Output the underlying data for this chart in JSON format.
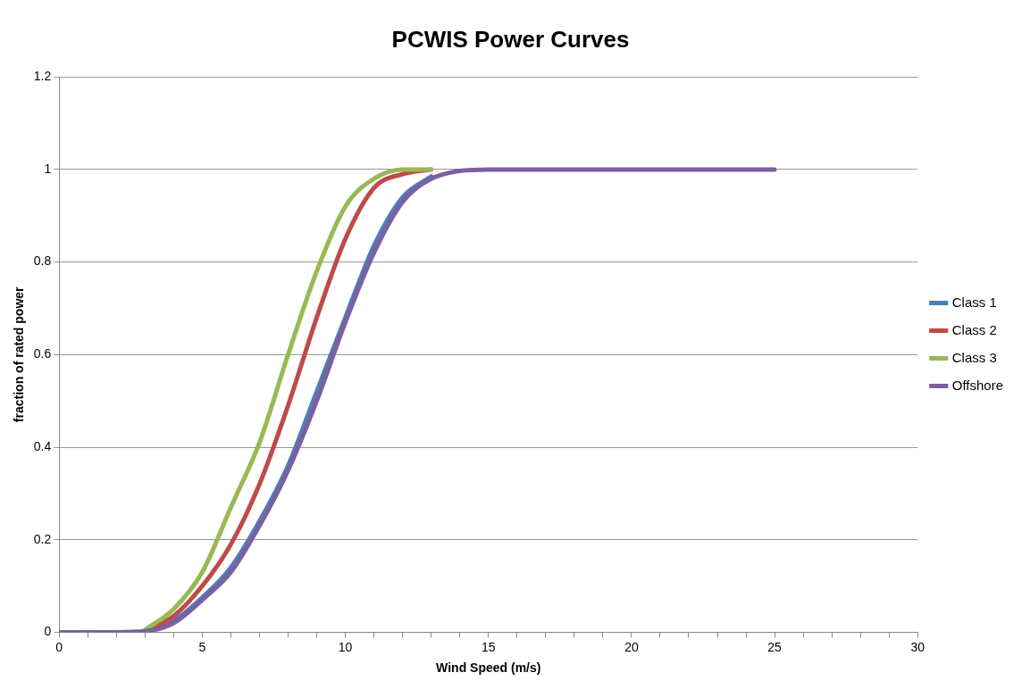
{
  "chart_data": {
    "type": "line",
    "title": "PCWIS Power Curves",
    "xlabel": "Wind Speed (m/s)",
    "ylabel": "fraction of rated power",
    "x": [
      0,
      1,
      2,
      3,
      4,
      5,
      6,
      7,
      8,
      9,
      10,
      11,
      12,
      13,
      14,
      15,
      16,
      17,
      18,
      19,
      20,
      21,
      22,
      23,
      24,
      25
    ],
    "series": [
      {
        "name": "Class 1",
        "color": "#4a7ebb",
        "values": [
          null,
          null,
          null,
          0.004,
          0.025,
          0.075,
          0.14,
          0.24,
          0.36,
          0.52,
          0.68,
          0.835,
          0.94,
          0.985,
          null,
          null,
          null,
          null,
          null,
          null,
          null,
          null,
          null,
          null,
          null,
          null
        ]
      },
      {
        "name": "Class 2",
        "color": "#be4b48",
        "values": [
          null,
          null,
          null,
          0.003,
          0.035,
          0.1,
          0.19,
          0.32,
          0.49,
          0.68,
          0.85,
          0.96,
          0.99,
          1,
          null,
          null,
          null,
          null,
          null,
          null,
          null,
          null,
          null,
          null,
          null,
          null
        ]
      },
      {
        "name": "Class 3",
        "color": "#98b954",
        "values": [
          null,
          null,
          null,
          0.005,
          0.05,
          0.13,
          0.27,
          0.41,
          0.6,
          0.78,
          0.92,
          0.98,
          1,
          1,
          null,
          null,
          null,
          null,
          null,
          null,
          null,
          null,
          null,
          null,
          null,
          null
        ]
      },
      {
        "name": "Offshore",
        "color": "#7d5fa0",
        "values": [
          0,
          0,
          0,
          0.002,
          0.02,
          0.07,
          0.13,
          0.23,
          0.35,
          0.5,
          0.67,
          0.82,
          0.93,
          0.98,
          0.997,
          1,
          1,
          1,
          1,
          1,
          1,
          1,
          1,
          1,
          1,
          1
        ]
      }
    ],
    "xlim": [
      0,
      30
    ],
    "xticks": [
      0,
      {
        "value": 1,
        "label": null
      },
      {
        "value": 2,
        "label": null
      },
      {
        "value": 3,
        "label": null
      },
      {
        "value": 4,
        "label": null
      },
      5,
      {
        "value": 6,
        "label": null
      },
      {
        "value": 7,
        "label": null
      },
      {
        "value": 8,
        "label": null
      },
      {
        "value": 9,
        "label": null
      },
      10,
      {
        "value": 11,
        "label": null
      },
      {
        "value": 12,
        "label": null
      },
      {
        "value": 13,
        "label": null
      },
      {
        "value": 14,
        "label": null
      },
      15,
      {
        "value": 16,
        "label": null
      },
      {
        "value": 17,
        "label": null
      },
      {
        "value": 18,
        "label": null
      },
      {
        "value": 19,
        "label": null
      },
      20,
      {
        "value": 21,
        "label": null
      },
      {
        "value": 22,
        "label": null
      },
      {
        "value": 23,
        "label": null
      },
      {
        "value": 24,
        "label": null
      },
      25,
      {
        "value": 26,
        "label": null
      },
      {
        "value": 27,
        "label": null
      },
      {
        "value": 28,
        "label": null
      },
      {
        "value": 29,
        "label": null
      },
      30
    ],
    "ylim": [
      0,
      1.2
    ],
    "yticks": [
      0,
      0.2,
      0.4,
      0.6,
      0.8,
      1,
      1.2
    ],
    "grid": "y",
    "legend": "right",
    "marker": "none",
    "line_style": "solid"
  }
}
